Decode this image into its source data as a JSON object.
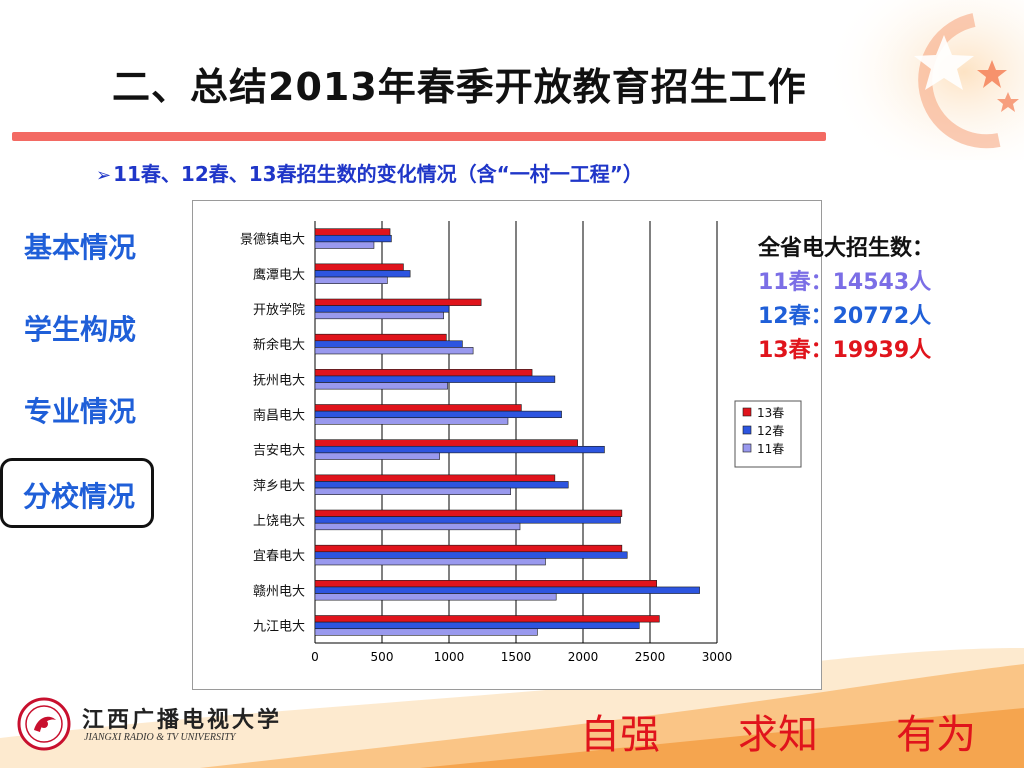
{
  "slide": {
    "title": "二、总结2013年春季开放教育招生工作",
    "subtitle_marker": "➢",
    "subtitle": "11春、12春、13春招生数的变化情况（含“一村一工程”）"
  },
  "nav": {
    "items": [
      {
        "label": "基本情况",
        "active": false
      },
      {
        "label": "学生构成",
        "active": false
      },
      {
        "label": "专业情况",
        "active": false
      },
      {
        "label": "分校情况",
        "active": true
      }
    ]
  },
  "totals": {
    "heading": "全省电大招生数：",
    "lines": [
      {
        "text": "11春：14543人",
        "color": "#7b6ee6"
      },
      {
        "text": "12春：20772人",
        "color": "#1f5fd8"
      },
      {
        "text": "13春：19939人",
        "color": "#e0141c"
      }
    ]
  },
  "logo": {
    "name": "江西广播电视大学",
    "english": "JIANGXI RADIO & TV UNIVERSITY"
  },
  "motto": [
    "自强",
    "求知",
    "有为"
  ],
  "colors": {
    "series_13": "#e0141c",
    "series_12": "#2d55e0",
    "series_11": "#9999ee",
    "accent_red": "#e0141c",
    "accent_blue": "#1f5fd8"
  },
  "chart_data": {
    "type": "bar",
    "orientation": "horizontal",
    "categories": [
      "景德镇电大",
      "鹰潭电大",
      "开放学院",
      "新余电大",
      "抚州电大",
      "南昌电大",
      "吉安电大",
      "萍乡电大",
      "上饶电大",
      "宜春电大",
      "赣州电大",
      "九江电大"
    ],
    "series": [
      {
        "name": "13春",
        "color": "#e0141c",
        "values": [
          560,
          660,
          1240,
          980,
          1620,
          1540,
          1960,
          1790,
          2290,
          2290,
          2550,
          2570
        ]
      },
      {
        "name": "12春",
        "color": "#2d55e0",
        "values": [
          570,
          710,
          1000,
          1100,
          1790,
          1840,
          2160,
          1890,
          2280,
          2330,
          2870,
          2420
        ]
      },
      {
        "name": "11春",
        "color": "#9999ee",
        "values": [
          440,
          540,
          960,
          1180,
          990,
          1440,
          930,
          1460,
          1530,
          1720,
          1800,
          1660
        ]
      }
    ],
    "legend_order": [
      "13春",
      "12春",
      "11春"
    ],
    "legend_position": "right",
    "xlim": [
      0,
      3000
    ],
    "xticks": [
      0,
      500,
      1000,
      1500,
      2000,
      2500,
      3000
    ],
    "grid": "vertical"
  }
}
